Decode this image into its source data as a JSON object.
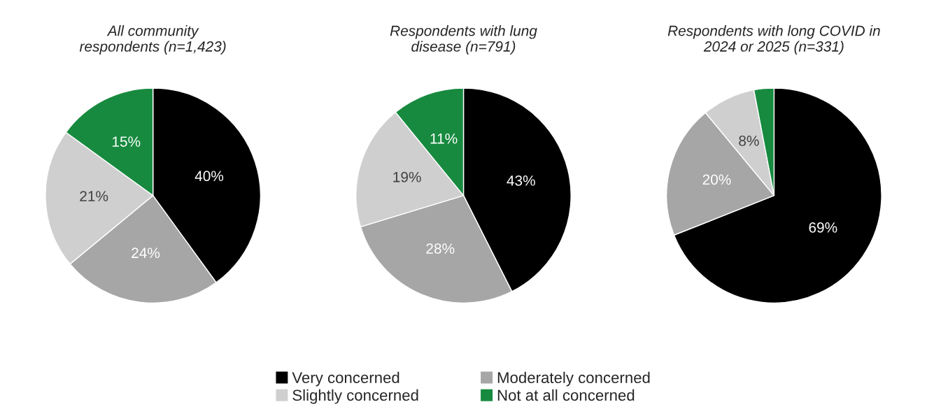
{
  "chart_data": [
    {
      "type": "pie",
      "title": "All community\nrespondents (n=1,423)",
      "categories": [
        "Very concerned",
        "Moderately concerned",
        "Slightly concerned",
        "Not at all concerned"
      ],
      "values": [
        40,
        24,
        21,
        15
      ],
      "colors": [
        "#000000",
        "#a6a6a6",
        "#d0cfd0",
        "#178a3f"
      ],
      "value_labels": [
        "40%",
        "24%",
        "21%",
        "15%"
      ],
      "legend": "bottom"
    },
    {
      "type": "pie",
      "title": "Respondents with lung\ndisease (n=791)",
      "categories": [
        null,
        null,
        null,
        null
      ],
      "values": [
        43,
        28,
        19,
        11
      ],
      "colors": [
        "#000000",
        "#a6a6a6",
        "#d0cfd0",
        "#178a3f"
      ],
      "value_labels": [
        "43%",
        "28%",
        "19%",
        "11%"
      ]
    },
    {
      "type": "pie",
      "title": "Respondents with long COVID in\n2024 or 2025 (n=331)",
      "categories": [
        null,
        null,
        null,
        null
      ],
      "values": [
        69,
        20,
        8,
        3
      ],
      "colors": [
        "#000000",
        "#a6a6a6",
        "#d0cfd0",
        "#178a3f"
      ],
      "value_labels": [
        "69%",
        "20%",
        "8%",
        null
      ]
    }
  ]
}
